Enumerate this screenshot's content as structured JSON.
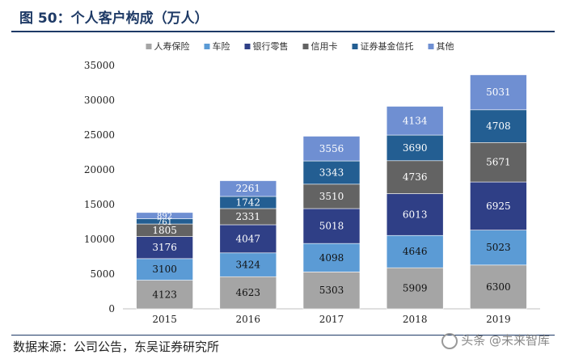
{
  "title": "图 50：个人客户构成（万人）",
  "source": "数据来源：公司公告，东吴证券研究所",
  "watermark": "头条 @未来智库",
  "colors": {
    "title": "#1e3a66",
    "series": [
      "#a5a5a5",
      "#5b9bd5",
      "#2f3f86",
      "#636363",
      "#235e92",
      "#6f8fd2"
    ]
  },
  "chart_data": {
    "type": "bar",
    "stacked": true,
    "title": "个人客户构成（万人）",
    "xlabel": "",
    "ylabel": "",
    "categories": [
      "2015",
      "2016",
      "2017",
      "2018",
      "2019"
    ],
    "ylim": [
      0,
      35000
    ],
    "yticks": [
      0,
      5000,
      10000,
      15000,
      20000,
      25000,
      30000,
      35000
    ],
    "grid": false,
    "legend_position": "top",
    "series": [
      {
        "name": "人寿保险",
        "values": [
          4123,
          4623,
          5303,
          5909,
          6300
        ]
      },
      {
        "name": "车险",
        "values": [
          3100,
          3424,
          4098,
          4646,
          5023
        ]
      },
      {
        "name": "银行零售",
        "values": [
          3176,
          4047,
          5018,
          6013,
          6925
        ]
      },
      {
        "name": "信用卡",
        "values": [
          1805,
          2331,
          3510,
          4736,
          5671
        ]
      },
      {
        "name": "证券基金信托",
        "values": [
          761,
          1742,
          3343,
          3690,
          4708
        ]
      },
      {
        "name": "其他",
        "values": [
          892,
          2261,
          3556,
          4134,
          5031
        ]
      }
    ]
  }
}
